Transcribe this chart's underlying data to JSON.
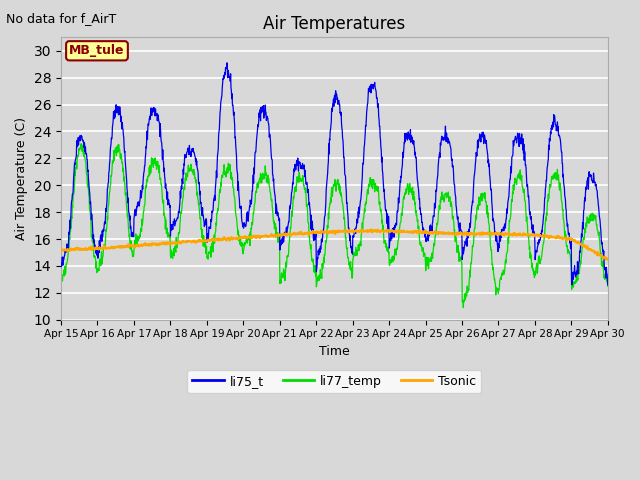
{
  "title": "Air Temperatures",
  "top_left_text": "No data for f_AirT",
  "ylabel": "Air Temperature (C)",
  "xlabel": "Time",
  "legend_box_label": "MB_tule",
  "legend_box_color": "#FFFF99",
  "legend_box_border": "#8B0000",
  "legend_box_text_color": "#8B0000",
  "ylim": [
    10,
    31
  ],
  "yticks": [
    10,
    12,
    14,
    16,
    18,
    20,
    22,
    24,
    26,
    28,
    30
  ],
  "bg_color": "#D8D8D8",
  "plot_bg_color": "#D8D8D8",
  "grid_color": "white",
  "series": {
    "li75_t": {
      "color": "#0000EE",
      "linewidth": 0.9
    },
    "li77_temp": {
      "color": "#00DD00",
      "linewidth": 0.9
    },
    "Tsonic": {
      "color": "#FFA500",
      "linewidth": 1.4
    }
  },
  "x_tick_labels": [
    "Apr 15",
    "Apr 16",
    "Apr 17",
    "Apr 18",
    "Apr 19",
    "Apr 20",
    "Apr 21",
    "Apr 22",
    "Apr 23",
    "Apr 24",
    "Apr 25",
    "Apr 26",
    "Apr 27",
    "Apr 28",
    "Apr 29",
    "Apr 30"
  ],
  "figsize": [
    6.4,
    4.8
  ],
  "dpi": 100
}
